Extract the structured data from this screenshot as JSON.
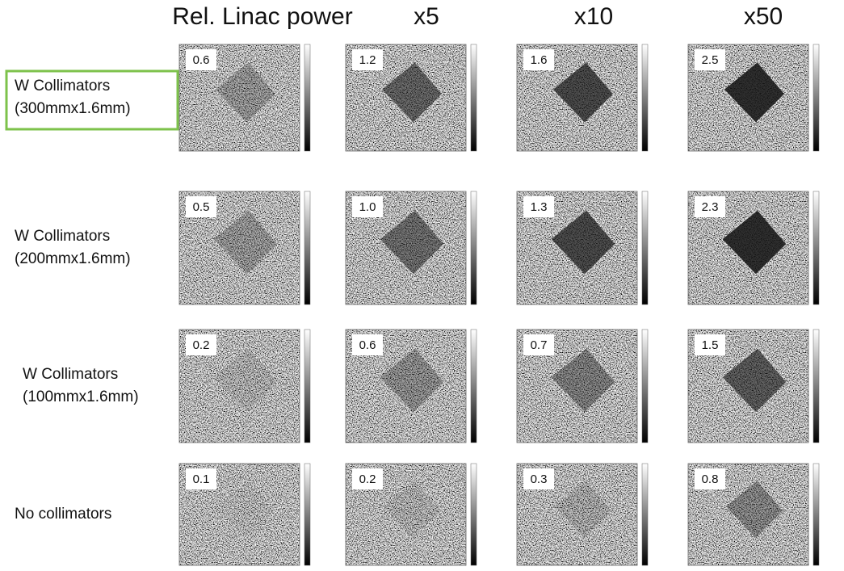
{
  "column_headers": [
    "Rel. Linac power",
    "x5",
    "x10",
    "x50"
  ],
  "rows": [
    {
      "label": [
        "W Collimators",
        "(300mmx1.6mm)"
      ],
      "values": [
        "0.6",
        "1.2",
        "1.6",
        "2.5"
      ]
    },
    {
      "label": [
        "W Collimators",
        "(200mmx1.6mm)"
      ],
      "values": [
        "0.5",
        "1.0",
        "1.3",
        "2.3"
      ]
    },
    {
      "label": [
        "W Collimators",
        "(100mmx1.6mm)"
      ],
      "values": [
        "0.2",
        "0.6",
        "0.7",
        "1.5"
      ]
    },
    {
      "label": [
        "No collimators"
      ],
      "values": [
        "0.1",
        "0.2",
        "0.3",
        "0.8"
      ]
    }
  ]
}
